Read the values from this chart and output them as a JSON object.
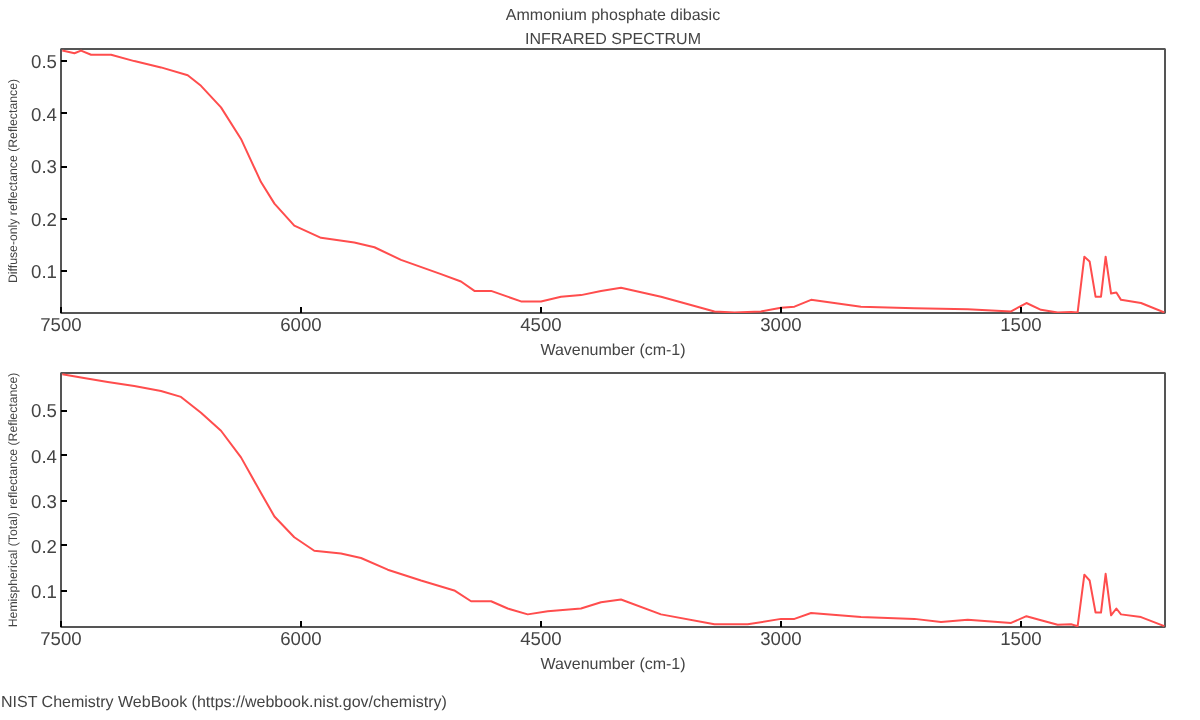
{
  "chart_data": [
    {
      "type": "line",
      "title": "Ammonium phosphate dibasic",
      "subtitle": "INFRARED SPECTRUM",
      "xlabel": "Wavenumber (cm-1)",
      "ylabel": "Diffuse-only reflectance (Reflectance)",
      "xlim": [
        7500,
        600
      ],
      "ylim": [
        0.021,
        0.523
      ],
      "xticks": [
        7500,
        6000,
        4500,
        3000,
        1500
      ],
      "yticks": [
        0.1,
        0.2,
        0.3,
        0.4,
        0.5
      ],
      "grid": false,
      "marker": "none",
      "line_style": "solid",
      "series": [
        {
          "color": "#ff4d4d",
          "x": [
            7492,
            7416,
            7375,
            7312,
            7187,
            7042,
            6875,
            6708,
            6625,
            6500,
            6375,
            6250,
            6166,
            6042,
            5875,
            5667,
            5541,
            5375,
            5125,
            5000,
            4916,
            4812,
            4625,
            4500,
            4375,
            4250,
            4125,
            4000,
            3750,
            3416,
            3291,
            3125,
            3000,
            2916,
            2812,
            2500,
            2166,
            1833,
            1562,
            1466,
            1375,
            1271,
            1187,
            1146,
            1104,
            1071,
            1034,
            1000,
            971,
            937,
            904,
            875,
            750,
            604
          ],
          "values": [
            0.52,
            0.515,
            0.52,
            0.512,
            0.512,
            0.5,
            0.488,
            0.473,
            0.453,
            0.412,
            0.352,
            0.27,
            0.229,
            0.187,
            0.164,
            0.155,
            0.146,
            0.122,
            0.095,
            0.081,
            0.063,
            0.063,
            0.043,
            0.043,
            0.052,
            0.055,
            0.063,
            0.069,
            0.052,
            0.024,
            0.022,
            0.024,
            0.031,
            0.033,
            0.046,
            0.033,
            0.03,
            0.028,
            0.024,
            0.04,
            0.027,
            0.022,
            0.023,
            0.022,
            0.128,
            0.119,
            0.052,
            0.052,
            0.128,
            0.058,
            0.06,
            0.046,
            0.04,
            0.022
          ]
        }
      ]
    },
    {
      "type": "line",
      "xlabel": "Wavenumber (cm-1)",
      "ylabel": "Hemispherical (Total) reflectance (Reflectance)",
      "annotations": [
        "NIST Chemistry WebBook (https://webbook.nist.gov/chemistry)"
      ],
      "xlim": [
        7500,
        600
      ],
      "ylim": [
        0.02,
        0.583
      ],
      "xticks": [
        7500,
        6000,
        4500,
        3000,
        1500
      ],
      "yticks": [
        0.1,
        0.2,
        0.3,
        0.4,
        0.5
      ],
      "grid": false,
      "marker": "none",
      "line_style": "solid",
      "series": [
        {
          "color": "#ff4d4d",
          "x": [
            7492,
            7375,
            7208,
            7042,
            6875,
            6750,
            6625,
            6500,
            6375,
            6250,
            6166,
            6042,
            5917,
            5750,
            5625,
            5458,
            5250,
            5042,
            4937,
            4812,
            4708,
            4583,
            4458,
            4250,
            4125,
            4000,
            3750,
            3416,
            3208,
            3000,
            2916,
            2812,
            2500,
            2166,
            2000,
            1833,
            1562,
            1466,
            1375,
            1271,
            1187,
            1146,
            1104,
            1071,
            1034,
            1000,
            971,
            937,
            904,
            875,
            750,
            604
          ],
          "values": [
            0.58,
            0.573,
            0.563,
            0.554,
            0.543,
            0.53,
            0.495,
            0.455,
            0.396,
            0.317,
            0.265,
            0.219,
            0.189,
            0.183,
            0.173,
            0.147,
            0.123,
            0.101,
            0.077,
            0.077,
            0.061,
            0.048,
            0.055,
            0.061,
            0.075,
            0.081,
            0.048,
            0.026,
            0.026,
            0.038,
            0.038,
            0.051,
            0.042,
            0.038,
            0.031,
            0.036,
            0.029,
            0.044,
            0.035,
            0.025,
            0.026,
            0.022,
            0.136,
            0.123,
            0.052,
            0.052,
            0.138,
            0.046,
            0.061,
            0.048,
            0.042,
            0.022
          ]
        }
      ]
    }
  ]
}
